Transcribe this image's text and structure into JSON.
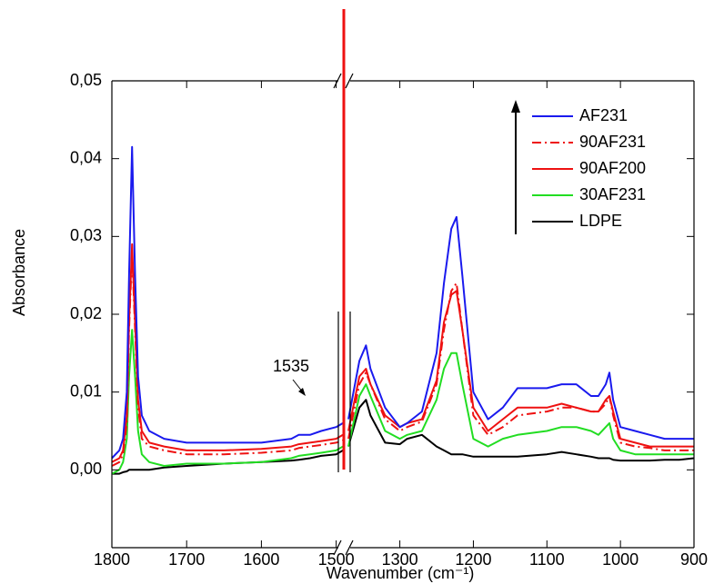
{
  "chart_data": {
    "type": "line",
    "x_axis_label": "Wavenumber (cm⁻¹)",
    "y_axis_label": "Absorbance",
    "x_segments": [
      {
        "xlim": [
          1800,
          1491
        ],
        "xticks": [
          1800,
          1700,
          1600,
          1500
        ]
      },
      {
        "xlim": [
          1370,
          900
        ],
        "xticks": [
          1300,
          1200,
          1100,
          1000,
          900
        ]
      }
    ],
    "ylim": [
      -0.01,
      0.05
    ],
    "yticks": [
      {
        "value": 0,
        "label": "0,00"
      },
      {
        "value": 0.01,
        "label": "0,01"
      },
      {
        "value": 0.02,
        "label": "0,02"
      },
      {
        "value": 0.03,
        "label": "0,03"
      },
      {
        "value": 0.04,
        "label": "0,04"
      },
      {
        "value": 0.05,
        "label": "0,05"
      }
    ],
    "legend": "upper right",
    "annotations": [
      {
        "text": "1535"
      }
    ],
    "x": [
      1800,
      1790,
      1785,
      1780,
      1777,
      1773,
      1769,
      1765,
      1760,
      1750,
      1730,
      1700,
      1650,
      1600,
      1560,
      1550,
      1535,
      1520,
      1500,
      1491,
      1370,
      1355,
      1346,
      1340,
      1320,
      1300,
      1290,
      1270,
      1250,
      1240,
      1230,
      1223,
      1215,
      1200,
      1180,
      1160,
      1140,
      1100,
      1080,
      1060,
      1040,
      1030,
      1020,
      1015,
      1010,
      1000,
      980,
      960,
      940,
      920,
      900
    ],
    "series": [
      {
        "name": "LDPE",
        "color": "#000000",
        "dash": "solid",
        "values": [
          -0.0005,
          -0.0005,
          -0.0003,
          -0.0002,
          0,
          0,
          0,
          0,
          0,
          0,
          0.0003,
          0.0005,
          0.0008,
          0.001,
          0.0012,
          0.0013,
          0.0015,
          0.0018,
          0.002,
          0.0025,
          0.003,
          0.008,
          0.009,
          0.007,
          0.0035,
          0.0033,
          0.004,
          0.0045,
          0.003,
          0.0025,
          0.002,
          0.002,
          0.002,
          0.0017,
          0.0017,
          0.0017,
          0.0017,
          0.002,
          0.0023,
          0.002,
          0.0017,
          0.0015,
          0.0015,
          0.0015,
          0.0013,
          0.0012,
          0.0012,
          0.0012,
          0.0013,
          0.0013,
          0.0015
        ]
      },
      {
        "name": "30AF231",
        "color": "#22dd22",
        "dash": "solid",
        "values": [
          -0.0005,
          0,
          0.001,
          0.004,
          0.012,
          0.018,
          0.012,
          0.005,
          0.002,
          0.001,
          0.0005,
          0.0008,
          0.0008,
          0.001,
          0.0015,
          0.0018,
          0.002,
          0.0022,
          0.0025,
          0.003,
          0.003,
          0.0095,
          0.011,
          0.0095,
          0.005,
          0.004,
          0.0045,
          0.005,
          0.009,
          0.013,
          0.015,
          0.015,
          0.011,
          0.004,
          0.003,
          0.004,
          0.0045,
          0.005,
          0.0055,
          0.0055,
          0.005,
          0.0045,
          0.0055,
          0.006,
          0.004,
          0.0025,
          0.002,
          0.002,
          0.002,
          0.002,
          0.002
        ]
      },
      {
        "name": "90AF200",
        "color": "#ee1111",
        "dash": "solid",
        "values": [
          0.001,
          0.0015,
          0.0025,
          0.007,
          0.019,
          0.029,
          0.019,
          0.009,
          0.005,
          0.0035,
          0.003,
          0.0025,
          0.0025,
          0.0027,
          0.003,
          0.0033,
          0.0035,
          0.0037,
          0.004,
          0.0045,
          0.005,
          0.012,
          0.013,
          0.011,
          0.007,
          0.0055,
          0.006,
          0.0065,
          0.0115,
          0.019,
          0.0225,
          0.023,
          0.018,
          0.008,
          0.005,
          0.0065,
          0.008,
          0.008,
          0.0085,
          0.008,
          0.0075,
          0.0075,
          0.009,
          0.0095,
          0.0075,
          0.004,
          0.0035,
          0.003,
          0.003,
          0.003,
          0.003
        ]
      },
      {
        "name": "90AF231",
        "color": "#ee1111",
        "dash": "dashdot",
        "values": [
          0.0005,
          0.001,
          0.002,
          0.006,
          0.018,
          0.028,
          0.018,
          0.008,
          0.004,
          0.003,
          0.0025,
          0.002,
          0.002,
          0.0022,
          0.0025,
          0.0028,
          0.003,
          0.0032,
          0.0035,
          0.0038,
          0.004,
          0.011,
          0.0125,
          0.011,
          0.0065,
          0.005,
          0.0055,
          0.0062,
          0.011,
          0.018,
          0.023,
          0.024,
          0.018,
          0.007,
          0.0045,
          0.0055,
          0.007,
          0.0075,
          0.008,
          0.008,
          0.0075,
          0.0075,
          0.0085,
          0.0095,
          0.007,
          0.0035,
          0.003,
          0.0028,
          0.0025,
          0.0025,
          0.0025
        ]
      },
      {
        "name": "AF231",
        "color": "#1a1aee",
        "dash": "solid",
        "values": [
          0.0015,
          0.0025,
          0.004,
          0.01,
          0.025,
          0.0415,
          0.025,
          0.012,
          0.007,
          0.005,
          0.004,
          0.0035,
          0.0035,
          0.0035,
          0.004,
          0.0045,
          0.0045,
          0.005,
          0.0055,
          0.006,
          0.0065,
          0.014,
          0.016,
          0.013,
          0.008,
          0.0055,
          0.006,
          0.0075,
          0.015,
          0.024,
          0.031,
          0.0325,
          0.025,
          0.01,
          0.0065,
          0.008,
          0.0105,
          0.0105,
          0.011,
          0.011,
          0.0095,
          0.0095,
          0.011,
          0.0125,
          0.009,
          0.0055,
          0.005,
          0.0045,
          0.004,
          0.004,
          0.004
        ]
      }
    ]
  }
}
